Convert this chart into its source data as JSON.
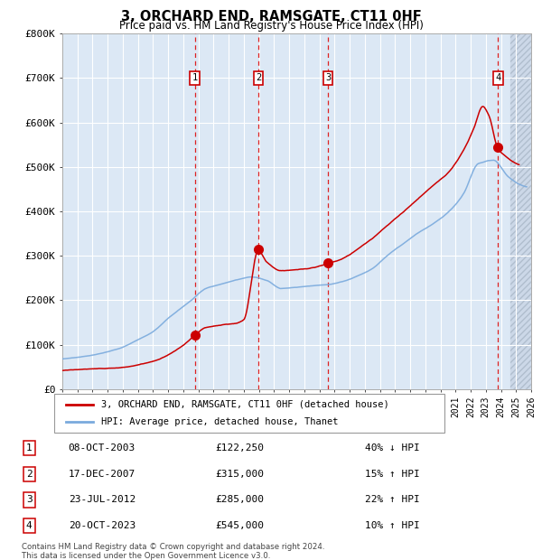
{
  "title": "3, ORCHARD END, RAMSGATE, CT11 0HF",
  "subtitle": "Price paid vs. HM Land Registry's House Price Index (HPI)",
  "transactions": [
    {
      "num": 1,
      "date": "08-OCT-2003",
      "year": 2003.77,
      "price": 122250,
      "hpi_diff": "40% ↓ HPI"
    },
    {
      "num": 2,
      "date": "17-DEC-2007",
      "year": 2007.96,
      "price": 315000,
      "hpi_diff": "15% ↑ HPI"
    },
    {
      "num": 3,
      "date": "23-JUL-2012",
      "year": 2012.56,
      "price": 285000,
      "hpi_diff": "22% ↑ HPI"
    },
    {
      "num": 4,
      "date": "20-OCT-2023",
      "year": 2023.8,
      "price": 545000,
      "hpi_diff": "10% ↑ HPI"
    }
  ],
  "legend_house": "3, ORCHARD END, RAMSGATE, CT11 0HF (detached house)",
  "legend_hpi": "HPI: Average price, detached house, Thanet",
  "footnote1": "Contains HM Land Registry data © Crown copyright and database right 2024.",
  "footnote2": "This data is licensed under the Open Government Licence v3.0.",
  "hpi_color": "#7aaadd",
  "house_color": "#cc0000",
  "bg_color": "#dce8f5",
  "ylim_max": 800000,
  "xmin": 1995,
  "xmax": 2026,
  "grid_color": "#ffffff",
  "dashed_color": "#ff4444",
  "hpi_knots_x": [
    1995.0,
    1996.0,
    1997.0,
    1998.0,
    1999.0,
    2000.0,
    2001.0,
    2002.0,
    2003.5,
    2004.5,
    2005.5,
    2006.5,
    2007.5,
    2008.5,
    2009.5,
    2010.5,
    2011.5,
    2012.5,
    2013.5,
    2014.5,
    2015.5,
    2016.5,
    2017.5,
    2018.5,
    2019.5,
    2020.5,
    2021.5,
    2022.5,
    2023.5,
    2024.5,
    2025.5
  ],
  "hpi_knots_y": [
    68000,
    72000,
    77000,
    84000,
    95000,
    112000,
    130000,
    160000,
    200000,
    228000,
    238000,
    248000,
    255000,
    248000,
    230000,
    232000,
    235000,
    238000,
    245000,
    258000,
    275000,
    305000,
    330000,
    355000,
    375000,
    400000,
    440000,
    510000,
    518000,
    480000,
    460000
  ],
  "house_knots_x": [
    1995.0,
    1997.0,
    1999.0,
    2001.0,
    2003.0,
    2003.77,
    2004.5,
    2005.5,
    2006.5,
    2007.0,
    2007.96,
    2008.5,
    2009.5,
    2010.5,
    2011.5,
    2012.56,
    2013.5,
    2014.5,
    2015.5,
    2016.5,
    2017.5,
    2018.5,
    2019.5,
    2020.5,
    2021.5,
    2022.2,
    2022.8,
    2023.2,
    2023.8,
    2024.2,
    2025.0
  ],
  "house_knots_y": [
    42000,
    45000,
    50000,
    65000,
    100000,
    122250,
    140000,
    145000,
    150000,
    158000,
    315000,
    290000,
    270000,
    272000,
    275000,
    285000,
    295000,
    315000,
    340000,
    370000,
    400000,
    430000,
    460000,
    490000,
    540000,
    590000,
    640000,
    620000,
    545000,
    530000,
    510000
  ]
}
